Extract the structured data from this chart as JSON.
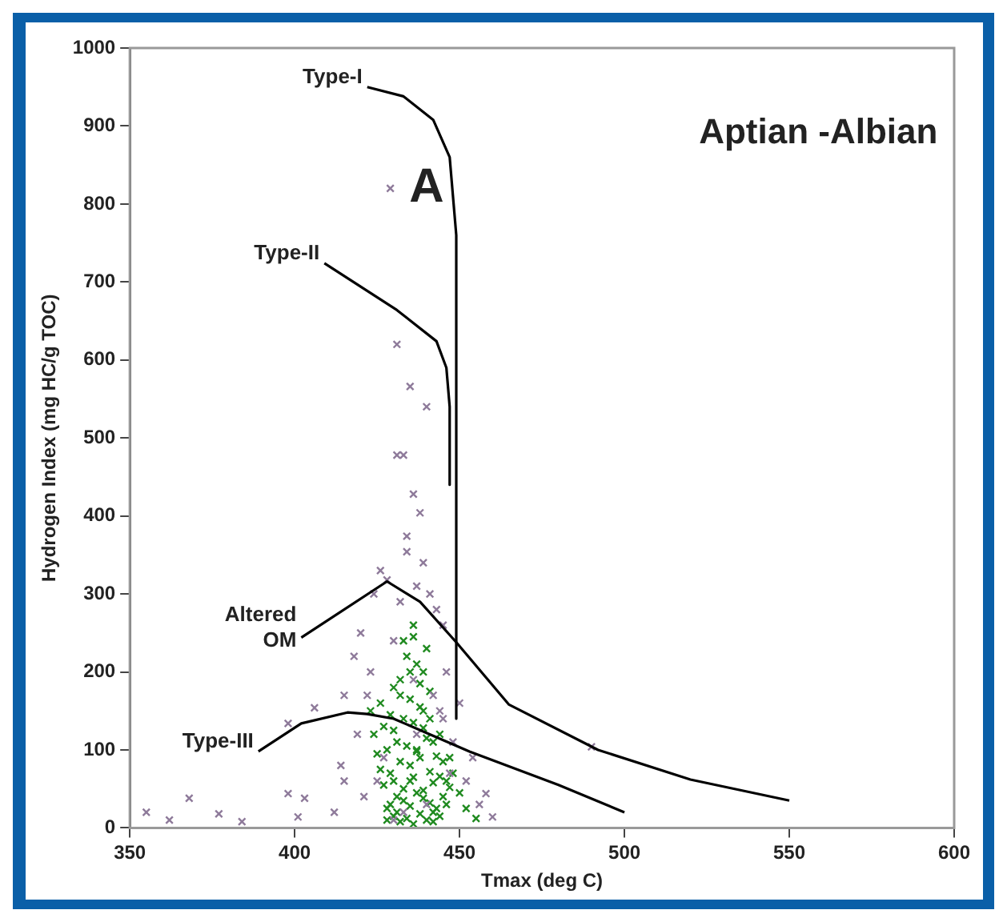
{
  "chart_data": {
    "type": "scatter",
    "xlabel": "Tmax (deg C)",
    "ylabel": "Hydrogen Index (mg HC/g TOC)",
    "xlim": [
      350,
      600
    ],
    "xticks": [
      350,
      400,
      450,
      500,
      550,
      600
    ],
    "ylim": [
      0,
      1000
    ],
    "yticks": [
      0,
      100,
      200,
      300,
      400,
      500,
      600,
      700,
      800,
      900,
      1000
    ],
    "grid": false,
    "legend": false,
    "series": [
      {
        "type": "line",
        "color": "#000000",
        "marker": "none",
        "x": [
          422,
          433,
          442,
          447,
          449,
          449
        ],
        "values": [
          950,
          938,
          908,
          860,
          760,
          140
        ]
      },
      {
        "type": "line",
        "color": "#000000",
        "marker": "none",
        "x": [
          409,
          431,
          443,
          446,
          447,
          447
        ],
        "values": [
          724,
          664,
          624,
          590,
          540,
          440
        ]
      },
      {
        "type": "line",
        "color": "#000000",
        "marker": "none",
        "x": [
          402,
          428,
          438,
          449,
          465,
          492,
          520,
          550
        ],
        "values": [
          244,
          316,
          290,
          238,
          158,
          100,
          62,
          35
        ]
      },
      {
        "type": "line",
        "color": "#000000",
        "marker": "none",
        "x": [
          389,
          402,
          416,
          422,
          430,
          453,
          480,
          500
        ],
        "values": [
          98,
          134,
          148,
          146,
          140,
          98,
          55,
          20
        ]
      },
      {
        "type": "scatter",
        "color": "#8e7a9a",
        "marker": "cross",
        "x": [
          429,
          431,
          435,
          440,
          433,
          431,
          436,
          438,
          434,
          434,
          439,
          437,
          441,
          428,
          432,
          426,
          445,
          443,
          424,
          430,
          446,
          420,
          418,
          436,
          442,
          444,
          422,
          419,
          427,
          448,
          355,
          362,
          368,
          377,
          384,
          398,
          403,
          401,
          412,
          414,
          415,
          415,
          406,
          398,
          458,
          460,
          454,
          490,
          452,
          456,
          421,
          425,
          433,
          447,
          440,
          430,
          437,
          423,
          450,
          445
        ],
        "values": [
          820,
          620,
          566,
          540,
          478,
          478,
          428,
          404,
          374,
          354,
          340,
          310,
          300,
          318,
          290,
          330,
          260,
          280,
          300,
          240,
          200,
          250,
          220,
          190,
          170,
          150,
          170,
          120,
          90,
          110,
          20,
          10,
          38,
          18,
          8,
          44,
          38,
          14,
          20,
          80,
          60,
          170,
          154,
          134,
          44,
          14,
          90,
          104,
          60,
          30,
          40,
          60,
          20,
          70,
          30,
          10,
          120,
          200,
          160,
          140
        ]
      },
      {
        "type": "scatter",
        "color": "#1f8a1f",
        "marker": "cross",
        "x": [
          428,
          430,
          432,
          434,
          436,
          438,
          440,
          442,
          429,
          431,
          433,
          435,
          437,
          439,
          441,
          443,
          427,
          430,
          433,
          436,
          439,
          442,
          445,
          426,
          429,
          432,
          435,
          438,
          441,
          444,
          447,
          425,
          428,
          431,
          434,
          437,
          440,
          443,
          446,
          424,
          427,
          430,
          433,
          436,
          439,
          442,
          445,
          448,
          423,
          426,
          429,
          432,
          435,
          438,
          441,
          444,
          447,
          450,
          432,
          435,
          438,
          441,
          434,
          437,
          440,
          436,
          439,
          428,
          431,
          442,
          444,
          446,
          430,
          433,
          436,
          439,
          437,
          435,
          452,
          455
        ],
        "values": [
          10,
          15,
          8,
          12,
          5,
          18,
          10,
          20,
          30,
          40,
          35,
          28,
          45,
          38,
          32,
          25,
          55,
          60,
          50,
          65,
          48,
          58,
          40,
          75,
          70,
          85,
          80,
          90,
          72,
          66,
          52,
          95,
          100,
          110,
          105,
          98,
          115,
          92,
          60,
          120,
          130,
          125,
          140,
          135,
          128,
          110,
          85,
          70,
          150,
          160,
          145,
          170,
          165,
          155,
          140,
          120,
          90,
          45,
          190,
          200,
          185,
          175,
          220,
          210,
          230,
          245,
          200,
          25,
          20,
          8,
          15,
          30,
          180,
          240,
          260,
          150,
          100,
          60,
          25,
          12
        ]
      }
    ],
    "annotations": [
      "Type-I",
      "Type-II",
      "Altered OM",
      "Type-III",
      "A",
      "Aptian -Albian"
    ]
  }
}
